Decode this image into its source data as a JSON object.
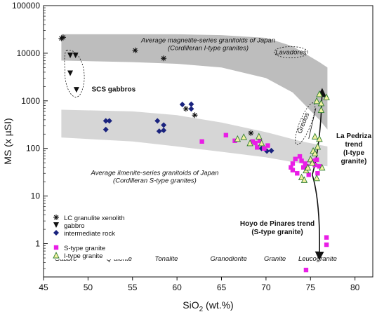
{
  "chart_data": {
    "type": "scatter",
    "xlabel_main": "SiO",
    "xlabel_sub": "2",
    "xlabel_rest": " (wt.%)",
    "ylabel": "MS (x µSI)",
    "xlim": [
      45,
      82
    ],
    "ylim": [
      0.2,
      100000
    ],
    "yscale": "log",
    "x_ticks": [
      45,
      50,
      55,
      60,
      65,
      70,
      75,
      80
    ],
    "x_tick_labels": [
      "45",
      "50",
      "55",
      "60",
      "65",
      "70",
      "75",
      "80"
    ],
    "y_ticks": [
      1,
      10,
      100,
      1000,
      10000,
      100000
    ],
    "y_tick_labels": [
      "1",
      "10",
      "100",
      "1000",
      "10000",
      "100000"
    ],
    "bands": [
      {
        "label_line1": "Average magnetite-series granitoids of Japan",
        "label_line2": "(Cordilleran I-type granites)",
        "color": "#bdbdbd",
        "upper": [
          [
            47,
            25000
          ],
          [
            60,
            25000
          ],
          [
            65,
            24000
          ],
          [
            70,
            21000
          ],
          [
            73,
            14000
          ],
          [
            76,
            6500
          ],
          [
            76.9,
            5000
          ]
        ],
        "lower": [
          [
            47,
            7000
          ],
          [
            55,
            6500
          ],
          [
            60,
            6000
          ],
          [
            65,
            5000
          ],
          [
            70,
            3000
          ],
          [
            73,
            1500
          ],
          [
            76,
            400
          ],
          [
            76.9,
            250
          ]
        ]
      },
      {
        "label_line1": "Average ilmenite-series granitoids of Japan",
        "label_line2": "(Cordilleran S-type granites)",
        "color": "#d6d6d6",
        "upper": [
          [
            47,
            650
          ],
          [
            55,
            600
          ],
          [
            60,
            500
          ],
          [
            65,
            350
          ],
          [
            70,
            220
          ],
          [
            74,
            140
          ],
          [
            76.9,
            110
          ]
        ],
        "lower": [
          [
            47,
            170
          ],
          [
            55,
            140
          ],
          [
            60,
            110
          ],
          [
            65,
            85
          ],
          [
            70,
            65
          ],
          [
            74,
            48
          ],
          [
            76.9,
            42
          ]
        ]
      }
    ],
    "series": [
      {
        "name": "LC granulite xenolith",
        "marker": "asterisk",
        "color": "#111111",
        "points": [
          [
            47,
            20500
          ],
          [
            47.2,
            21500
          ],
          [
            55.3,
            11500
          ],
          [
            58.5,
            7800
          ],
          [
            61,
            680
          ],
          [
            62,
            500
          ],
          [
            68.3,
            210
          ]
        ]
      },
      {
        "name": "gabbro",
        "marker": "triangle-down",
        "color": "#111111",
        "points": [
          [
            48,
            9000
          ],
          [
            48.6,
            9000
          ],
          [
            48,
            3800
          ],
          [
            48.7,
            1700
          ]
        ]
      },
      {
        "name": "intermediate rock",
        "marker": "diamond",
        "color": "#1a237e",
        "points": [
          [
            52,
            380
          ],
          [
            52.4,
            380
          ],
          [
            52,
            250
          ],
          [
            57.8,
            380
          ],
          [
            58.5,
            310
          ],
          [
            58.5,
            240
          ],
          [
            58,
            230
          ],
          [
            60.6,
            840
          ],
          [
            61.6,
            850
          ],
          [
            61.6,
            680
          ],
          [
            69.5,
            100
          ],
          [
            70.1,
            88
          ],
          [
            70.6,
            90
          ]
        ]
      },
      {
        "name": "S-type granite",
        "marker": "square",
        "color": "#e91ee6",
        "points": [
          [
            62.8,
            140
          ],
          [
            65.5,
            190
          ],
          [
            66.5,
            145
          ],
          [
            68.5,
            140
          ],
          [
            68.8,
            130
          ],
          [
            69,
            105
          ],
          [
            69.3,
            145
          ],
          [
            69.8,
            100
          ],
          [
            70.2,
            115
          ],
          [
            72.8,
            40
          ],
          [
            73,
            48
          ],
          [
            73,
            35
          ],
          [
            73.3,
            60
          ],
          [
            73.5,
            30
          ],
          [
            73.8,
            68
          ],
          [
            74,
            55
          ],
          [
            74.2,
            40
          ],
          [
            74.4,
            48
          ],
          [
            74.6,
            42
          ],
          [
            74.8,
            28
          ],
          [
            75.2,
            55
          ],
          [
            75.5,
            45
          ],
          [
            75.7,
            58
          ],
          [
            76,
            42
          ],
          [
            74.5,
            0.28
          ],
          [
            76.8,
            1.35
          ],
          [
            76.8,
            0.95
          ],
          [
            75.8,
            30
          ]
        ]
      },
      {
        "name": "I-type granite",
        "marker": "triangle-up",
        "color": "#2e7d32",
        "points": [
          [
            66.8,
            160
          ],
          [
            67.5,
            175
          ],
          [
            68.2,
            130
          ],
          [
            69.2,
            180
          ],
          [
            69.5,
            130
          ],
          [
            74,
            25
          ],
          [
            74.3,
            22
          ],
          [
            74.5,
            35
          ],
          [
            74.7,
            40
          ],
          [
            75,
            60
          ],
          [
            75.2,
            50
          ],
          [
            75.3,
            90
          ],
          [
            75.5,
            80
          ],
          [
            75.8,
            110
          ],
          [
            76,
            160
          ],
          [
            75.5,
            180
          ],
          [
            76.2,
            650
          ],
          [
            76.2,
            900
          ],
          [
            75.7,
            1000
          ],
          [
            76.8,
            1200
          ],
          [
            76,
            1400
          ],
          [
            76.3,
            40
          ],
          [
            75.7,
            24
          ]
        ]
      }
    ],
    "rock_labels": [
      {
        "text": "Gabbro",
        "x": 47.5
      },
      {
        "text": "Q-diorite",
        "x": 53.5
      },
      {
        "text": "Tonalite",
        "x": 58.8
      },
      {
        "text": "Granodiorite",
        "x": 65.8
      },
      {
        "text": "Granite",
        "x": 71
      },
      {
        "text": "Leucogranite",
        "x": 75.8
      }
    ],
    "annotations": {
      "scs_gabbros": "SCS gabbros",
      "lavadores": "Lavadores",
      "gredos": "Gredos",
      "la_pedriza_line1": "La Pedriza",
      "la_pedriza_line2": "trend",
      "la_pedriza_line3": "(I-type",
      "la_pedriza_line4": "granite)",
      "hoyo_line1": "Hoyo de Pinares trend",
      "hoyo_line2": "(S-type granite)"
    },
    "legend_placement": "bottom-left"
  }
}
